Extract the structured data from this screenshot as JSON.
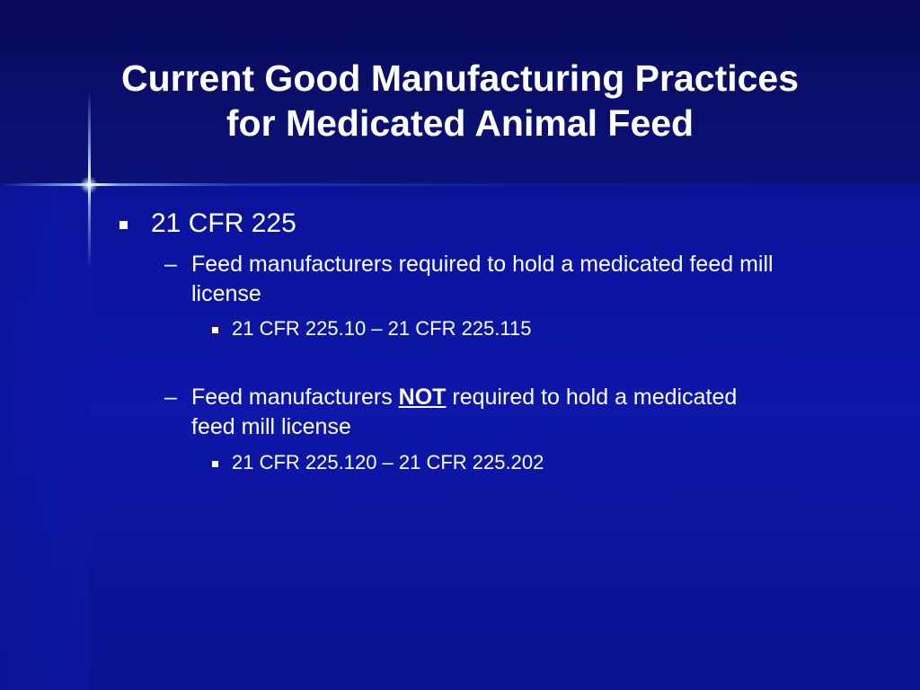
{
  "slide": {
    "title_line1": "Current Good Manufacturing Practices",
    "title_line2": "for Medicated Animal Feed",
    "bullet1": {
      "text": "21 CFR 225",
      "sub1": {
        "dash": "–",
        "line1": "Feed manufacturers required to hold a medicated feed mill",
        "line2": "license",
        "sub": "21 CFR 225.10 – 21 CFR 225.115"
      },
      "sub2": {
        "dash": "–",
        "prefix": "Feed manufacturers ",
        "emphasis": "NOT",
        "suffix": " required to hold a medicated",
        "line2": "feed mill license",
        "sub": "21 CFR 225.120 – 21 CFR 225.202"
      }
    }
  },
  "colors": {
    "background": "#0c14a0",
    "title_band": "#080c60",
    "text": "#ffffff"
  }
}
